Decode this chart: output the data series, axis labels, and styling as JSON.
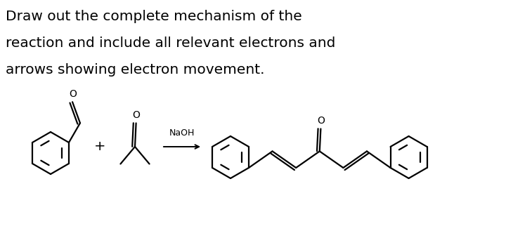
{
  "title_lines": [
    "Draw out the complete mechanism of the",
    "reaction and include all relevant electrons and",
    "arrows showing electron movement."
  ],
  "title_fontsize": 14.5,
  "background_color": "#ffffff",
  "text_color": "#000000",
  "line_color": "#000000",
  "line_width": 1.6,
  "naoh_label": "NaOH",
  "figsize": [
    7.2,
    3.49
  ],
  "dpi": 100
}
